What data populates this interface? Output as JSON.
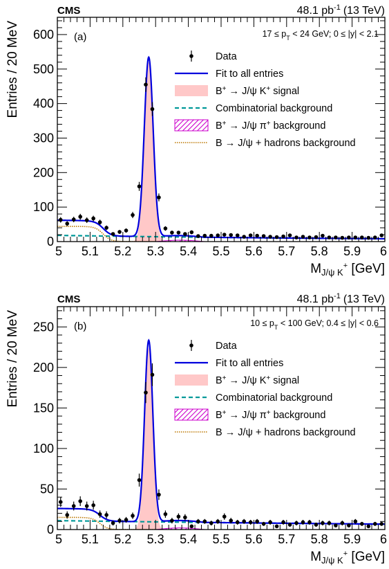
{
  "figure": {
    "experiment": "CMS",
    "luminosity": "48.1 pb",
    "luminosity_unit_exp": "-1",
    "energy": "(13 TeV)"
  },
  "legend": {
    "data": "Data",
    "fit": "Fit to all entries",
    "signal_pre": "B",
    "signal_post": " → J/ψ K",
    "signal_tail": " signal",
    "comb": "Combinatorial background",
    "pi_pre": "B",
    "pi_post": " → J/ψ π",
    "pi_tail": " background",
    "had": "B → J/ψ + hadrons background",
    "plus": "+"
  },
  "axes": {
    "ylabel": "Entries / 20 MeV",
    "xlabel_main": "M",
    "xlabel_sub": "J/ψ K",
    "xlabel_sup": "+",
    "xlabel_unit": " [GeV]",
    "xticks": [
      "5",
      "5.1",
      "5.2",
      "5.3",
      "5.4",
      "5.5",
      "5.6",
      "5.7",
      "5.8",
      "5.9",
      "6"
    ]
  },
  "colors": {
    "fit": "#0000dd",
    "signal_fill": "#ffc8c8",
    "combinatorial": "#009999",
    "pi_background": "#cc00cc",
    "hadrons": "#bb7700"
  },
  "chart_data": [
    {
      "type": "line",
      "panel": "(a)",
      "selection_pre": "17 ≤ p",
      "selection_sub": "T",
      "selection_post": " < 24 GeV; 0 ≤ |y| < 2.1",
      "xlim": [
        5,
        6
      ],
      "ylim": [
        0,
        650
      ],
      "yticks": [
        0,
        100,
        200,
        300,
        400,
        500,
        600
      ],
      "signal": {
        "mean": 5.279,
        "sigma": 0.0135,
        "peak": 520
      },
      "combinatorial": {
        "a": 18,
        "b": -8,
        "x0": 5.0
      },
      "hadrons": {
        "plateau": 44,
        "edge": 5.14,
        "width": 0.012
      },
      "pi_background": {
        "peak": 4,
        "from": 5.3,
        "to": 5.45
      },
      "data_points": [
        {
          "x": 5.01,
          "y": 63,
          "err": 8
        },
        {
          "x": 5.03,
          "y": 52,
          "err": 7
        },
        {
          "x": 5.05,
          "y": 64,
          "err": 8
        },
        {
          "x": 5.07,
          "y": 72,
          "err": 8.5
        },
        {
          "x": 5.09,
          "y": 62,
          "err": 8
        },
        {
          "x": 5.11,
          "y": 67,
          "err": 8
        },
        {
          "x": 5.13,
          "y": 56,
          "err": 7.5
        },
        {
          "x": 5.15,
          "y": 40,
          "err": 6.5
        },
        {
          "x": 5.17,
          "y": 22,
          "err": 5
        },
        {
          "x": 5.19,
          "y": 28,
          "err": 5.5
        },
        {
          "x": 5.21,
          "y": 32,
          "err": 6
        },
        {
          "x": 5.23,
          "y": 77,
          "err": 9
        },
        {
          "x": 5.25,
          "y": 160,
          "err": 13
        },
        {
          "x": 5.27,
          "y": 455,
          "err": 21
        },
        {
          "x": 5.29,
          "y": 384,
          "err": 20
        },
        {
          "x": 5.31,
          "y": 128,
          "err": 11.5
        },
        {
          "x": 5.33,
          "y": 38,
          "err": 6.5
        },
        {
          "x": 5.35,
          "y": 26,
          "err": 5.5
        },
        {
          "x": 5.37,
          "y": 26,
          "err": 5
        },
        {
          "x": 5.39,
          "y": 22,
          "err": 5
        },
        {
          "x": 5.41,
          "y": 27,
          "err": 5.5
        },
        {
          "x": 5.43,
          "y": 16,
          "err": 4
        },
        {
          "x": 5.45,
          "y": 17,
          "err": 4
        },
        {
          "x": 5.47,
          "y": 17,
          "err": 4
        },
        {
          "x": 5.49,
          "y": 18,
          "err": 4
        },
        {
          "x": 5.51,
          "y": 20,
          "err": 4.5
        },
        {
          "x": 5.53,
          "y": 19,
          "err": 4.5
        },
        {
          "x": 5.55,
          "y": 18,
          "err": 4
        },
        {
          "x": 5.57,
          "y": 14,
          "err": 4
        },
        {
          "x": 5.59,
          "y": 18,
          "err": 4
        },
        {
          "x": 5.61,
          "y": 17,
          "err": 4
        },
        {
          "x": 5.63,
          "y": 16,
          "err": 4
        },
        {
          "x": 5.65,
          "y": 14,
          "err": 4
        },
        {
          "x": 5.67,
          "y": 13,
          "err": 3.5
        },
        {
          "x": 5.69,
          "y": 15,
          "err": 4
        },
        {
          "x": 5.71,
          "y": 18,
          "err": 4
        },
        {
          "x": 5.73,
          "y": 12,
          "err": 3.5
        },
        {
          "x": 5.75,
          "y": 14,
          "err": 4
        },
        {
          "x": 5.77,
          "y": 12,
          "err": 3.5
        },
        {
          "x": 5.79,
          "y": 13,
          "err": 3.5
        },
        {
          "x": 5.81,
          "y": 17,
          "err": 4
        },
        {
          "x": 5.83,
          "y": 12,
          "err": 3.5
        },
        {
          "x": 5.85,
          "y": 12,
          "err": 3.5
        },
        {
          "x": 5.87,
          "y": 11,
          "err": 3.5
        },
        {
          "x": 5.89,
          "y": 12,
          "err": 3.5
        },
        {
          "x": 5.91,
          "y": 12,
          "err": 3.5
        },
        {
          "x": 5.93,
          "y": 12,
          "err": 3.5
        },
        {
          "x": 5.95,
          "y": 11,
          "err": 3.5
        },
        {
          "x": 5.97,
          "y": 12,
          "err": 3.5
        },
        {
          "x": 5.99,
          "y": 18,
          "err": 4
        }
      ]
    },
    {
      "type": "line",
      "panel": "(b)",
      "selection_pre": "10 ≤ p",
      "selection_sub": "T",
      "selection_post": " < 100 GeV; 0.4 ≤ |y| < 0.6",
      "xlim": [
        5,
        6
      ],
      "ylim": [
        0,
        275
      ],
      "yticks": [
        0,
        50,
        100,
        150,
        200,
        250
      ],
      "signal": {
        "mean": 5.279,
        "sigma": 0.0125,
        "peak": 224
      },
      "combinatorial": {
        "a": 11,
        "b": -5,
        "x0": 5.0
      },
      "hadrons": {
        "plateau": 15,
        "edge": 5.13,
        "width": 0.012
      },
      "pi_background": {
        "peak": 2,
        "from": 5.3,
        "to": 5.45
      },
      "data_points": [
        {
          "x": 5.01,
          "y": 34,
          "err": 6
        },
        {
          "x": 5.03,
          "y": 18,
          "err": 4.5
        },
        {
          "x": 5.05,
          "y": 29,
          "err": 5.5
        },
        {
          "x": 5.07,
          "y": 35,
          "err": 6
        },
        {
          "x": 5.09,
          "y": 29,
          "err": 5.5
        },
        {
          "x": 5.11,
          "y": 30,
          "err": 5.5
        },
        {
          "x": 5.13,
          "y": 19,
          "err": 4.5
        },
        {
          "x": 5.15,
          "y": 18,
          "err": 4.5
        },
        {
          "x": 5.17,
          "y": 8,
          "err": 3
        },
        {
          "x": 5.19,
          "y": 11,
          "err": 3.5
        },
        {
          "x": 5.21,
          "y": 12,
          "err": 3.5
        },
        {
          "x": 5.23,
          "y": 17,
          "err": 4
        },
        {
          "x": 5.25,
          "y": 61,
          "err": 8
        },
        {
          "x": 5.27,
          "y": 169,
          "err": 13
        },
        {
          "x": 5.29,
          "y": 191,
          "err": 14
        },
        {
          "x": 5.31,
          "y": 43,
          "err": 6.5
        },
        {
          "x": 5.33,
          "y": 19,
          "err": 4.5
        },
        {
          "x": 5.35,
          "y": 11,
          "err": 3.5
        },
        {
          "x": 5.37,
          "y": 16,
          "err": 4
        },
        {
          "x": 5.39,
          "y": 15,
          "err": 4
        },
        {
          "x": 5.41,
          "y": 4,
          "err": 2
        },
        {
          "x": 5.43,
          "y": 10,
          "err": 3
        },
        {
          "x": 5.45,
          "y": 10,
          "err": 3
        },
        {
          "x": 5.47,
          "y": 8,
          "err": 3
        },
        {
          "x": 5.49,
          "y": 10,
          "err": 3
        },
        {
          "x": 5.51,
          "y": 16,
          "err": 4
        },
        {
          "x": 5.53,
          "y": 11,
          "err": 3.5
        },
        {
          "x": 5.55,
          "y": 9,
          "err": 3
        },
        {
          "x": 5.57,
          "y": 10,
          "err": 3
        },
        {
          "x": 5.59,
          "y": 9,
          "err": 3
        },
        {
          "x": 5.61,
          "y": 10,
          "err": 3
        },
        {
          "x": 5.63,
          "y": 7,
          "err": 2.5
        },
        {
          "x": 5.65,
          "y": 9,
          "err": 3
        },
        {
          "x": 5.67,
          "y": 4,
          "err": 2
        },
        {
          "x": 5.69,
          "y": 9,
          "err": 3
        },
        {
          "x": 5.71,
          "y": 6,
          "err": 2.5
        },
        {
          "x": 5.73,
          "y": 8,
          "err": 3
        },
        {
          "x": 5.75,
          "y": 9,
          "err": 3
        },
        {
          "x": 5.77,
          "y": 9,
          "err": 3
        },
        {
          "x": 5.79,
          "y": 6,
          "err": 2.5
        },
        {
          "x": 5.81,
          "y": 8,
          "err": 3
        },
        {
          "x": 5.83,
          "y": 8,
          "err": 3
        },
        {
          "x": 5.85,
          "y": 5,
          "err": 2
        },
        {
          "x": 5.87,
          "y": 8,
          "err": 3
        },
        {
          "x": 5.89,
          "y": 5,
          "err": 2
        },
        {
          "x": 5.91,
          "y": 10,
          "err": 3
        },
        {
          "x": 5.93,
          "y": 7,
          "err": 2.5
        },
        {
          "x": 5.95,
          "y": 4,
          "err": 2
        },
        {
          "x": 5.97,
          "y": 7,
          "err": 2.5
        },
        {
          "x": 5.99,
          "y": 7,
          "err": 2.5
        }
      ]
    }
  ]
}
